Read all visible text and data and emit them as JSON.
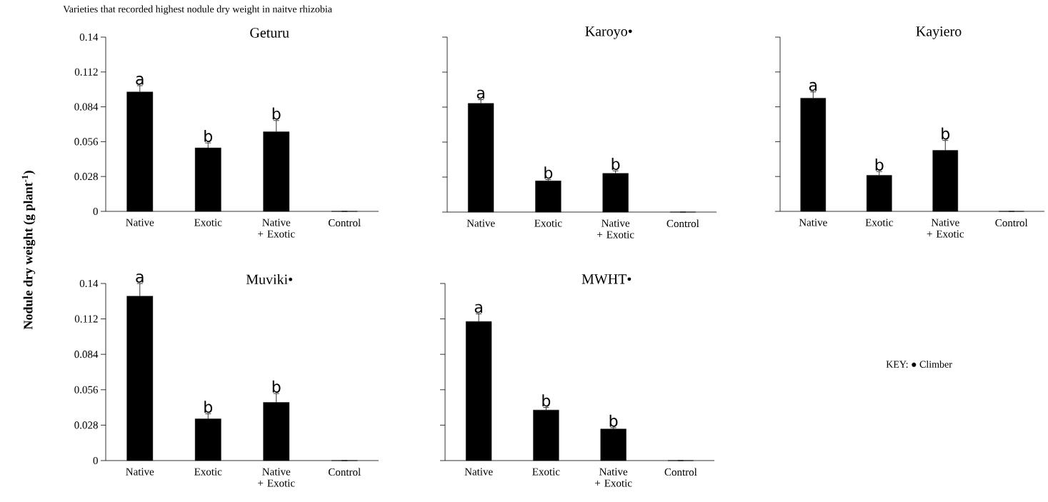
{
  "chart_data": [
    {
      "type": "bar",
      "title": "Geturu",
      "ylabel": "Nodule dry weight (g plant$^{-1}$)",
      "categories": [
        "Native",
        "Exotic",
        "Native + Exotic",
        "Control"
      ],
      "values": [
        0.096,
        0.051,
        0.064,
        0
      ],
      "errors": [
        0.005,
        0.004,
        0.009,
        null
      ],
      "color": "#000000",
      "ylim": [
        0,
        0.14
      ],
      "yticks": [
        0,
        0.028,
        0.056,
        0.084,
        0.112,
        0.14
      ],
      "annotations": [
        "Varieties that recorded highest  nodule dry weight in naitve rhizobia",
        {
          "text": "a",
          "x": "Native",
          "y": 0.101
        },
        {
          "text": "b",
          "x": "Exotic",
          "y": 0.055
        },
        {
          "text": "b",
          "x": "Native + Exotic",
          "y": 0.073
        }
      ]
    },
    {
      "type": "bar",
      "title": "Karoyo•",
      "categories": [
        "Native",
        "Exotic",
        "Native + Exotic",
        "Control"
      ],
      "values": [
        0.087,
        0.025,
        0.031,
        0
      ],
      "errors": [
        0.003,
        0.001,
        0.002,
        null
      ],
      "color": "#000000",
      "ylim": [
        0,
        0.14
      ],
      "yticks": [
        0,
        0.028,
        0.056,
        0.084,
        0.112,
        0.14
      ],
      "tick_labels": "x",
      "annotations": [
        {
          "text": "a",
          "x": "Native",
          "y": 0.09
        },
        {
          "text": "b",
          "x": "Exotic",
          "y": 0.026
        },
        {
          "text": "b",
          "x": "Native + Exotic",
          "y": 0.033
        }
      ]
    },
    {
      "type": "bar",
      "title": "Kayiero",
      "categories": [
        "Native",
        "Exotic",
        "Native + Exotic",
        "Control"
      ],
      "values": [
        0.091,
        0.029,
        0.049,
        0
      ],
      "errors": [
        0.005,
        0.003,
        0.008,
        null
      ],
      "color": "#000000",
      "ylim": [
        0,
        0.14
      ],
      "yticks": [
        0,
        0.028,
        0.056,
        0.084,
        0.112,
        0.14
      ],
      "tick_labels": "x",
      "annotations": [
        {
          "text": "a",
          "x": "Native",
          "y": 0.096
        },
        {
          "text": "b",
          "x": "Exotic",
          "y": 0.032
        },
        {
          "text": "b",
          "x": "Native + Exotic",
          "y": 0.057
        }
      ]
    },
    {
      "type": "bar",
      "title": "Muviki•",
      "categories": [
        "Native",
        "Exotic",
        "Native + Exotic",
        "Control"
      ],
      "values": [
        0.13,
        0.033,
        0.046,
        0
      ],
      "errors": [
        0.01,
        0.004,
        0.007,
        null
      ],
      "color": "#000000",
      "ylim": [
        0,
        0.14
      ],
      "yticks": [
        0,
        0.028,
        0.056,
        0.084,
        0.112,
        0.14
      ],
      "annotations": [
        {
          "text": "a",
          "x": "Native",
          "y": 0.14
        },
        {
          "text": "b",
          "x": "Exotic",
          "y": 0.037
        },
        {
          "text": "b",
          "x": "Native + Exotic",
          "y": 0.053
        }
      ]
    },
    {
      "type": "bar",
      "title": "MWHT•",
      "categories": [
        "Native",
        "Exotic",
        "Native + Exotic",
        "Control"
      ],
      "values": [
        0.11,
        0.04,
        0.025,
        0
      ],
      "errors": [
        0.006,
        0.002,
        0.001,
        null
      ],
      "color": "#000000",
      "ylim": [
        0,
        0.14
      ],
      "yticks": [
        0,
        0.028,
        0.056,
        0.084,
        0.112,
        0.14
      ],
      "tick_labels": "x",
      "annotations": [
        "KEY: ● Climber",
        {
          "text": "a",
          "x": "Native",
          "y": 0.116
        },
        {
          "text": "b",
          "x": "Exotic",
          "y": 0.042
        },
        {
          "text": "b",
          "x": "Native + Exotic",
          "y": 0.026
        }
      ]
    }
  ]
}
